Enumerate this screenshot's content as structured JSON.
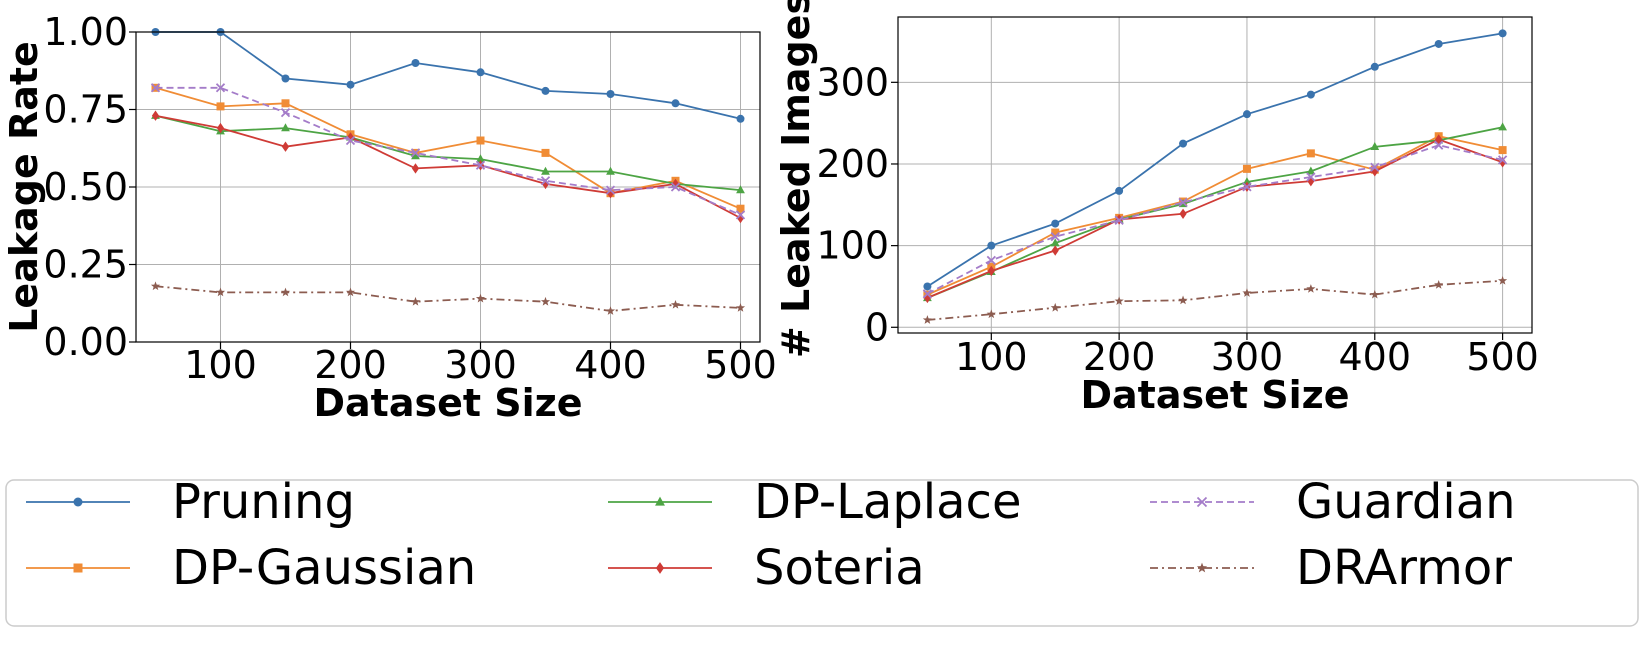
{
  "chart_data": [
    {
      "type": "line",
      "xlabel": "Dataset Size",
      "ylabel": "Leakage Rate",
      "xlim": [
        35,
        515
      ],
      "ylim": [
        0,
        1
      ],
      "xticks": [
        100,
        200,
        300,
        400,
        500
      ],
      "yticks": [
        "0.00",
        "0.25",
        "0.50",
        "0.75",
        "1.00"
      ],
      "grid": true,
      "x": [
        50,
        100,
        150,
        200,
        250,
        300,
        350,
        400,
        450,
        500
      ],
      "series": [
        {
          "name": "Pruning",
          "values": [
            1.0,
            1.0,
            0.85,
            0.83,
            0.9,
            0.87,
            0.81,
            0.8,
            0.77,
            0.72
          ]
        },
        {
          "name": "DP-Gaussian",
          "values": [
            0.82,
            0.76,
            0.77,
            0.67,
            0.61,
            0.65,
            0.61,
            0.48,
            0.52,
            0.43
          ]
        },
        {
          "name": "DP-Laplace",
          "values": [
            0.73,
            0.68,
            0.69,
            0.66,
            0.6,
            0.59,
            0.55,
            0.55,
            0.51,
            0.49
          ]
        },
        {
          "name": "Soteria",
          "values": [
            0.73,
            0.69,
            0.63,
            0.66,
            0.56,
            0.57,
            0.51,
            0.48,
            0.51,
            0.4
          ]
        },
        {
          "name": "Guardian",
          "values": [
            0.82,
            0.82,
            0.74,
            0.65,
            0.61,
            0.57,
            0.52,
            0.49,
            0.5,
            0.41
          ]
        },
        {
          "name": "DRArmor",
          "values": [
            0.18,
            0.16,
            0.16,
            0.16,
            0.13,
            0.14,
            0.13,
            0.1,
            0.12,
            0.11
          ]
        }
      ]
    },
    {
      "type": "line",
      "xlabel": "Dataset Size",
      "ylabel": "# Leaked Images",
      "xlim": [
        27,
        523
      ],
      "ylim": [
        -7,
        380
      ],
      "xticks": [
        100,
        200,
        300,
        400,
        500
      ],
      "yticks": [
        "0",
        "100",
        "200",
        "300"
      ],
      "grid": true,
      "x": [
        50,
        100,
        150,
        200,
        250,
        300,
        350,
        400,
        450,
        500
      ],
      "series": [
        {
          "name": "Pruning",
          "values": [
            50,
            100,
            127,
            167,
            225,
            261,
            285,
            319,
            347,
            360
          ]
        },
        {
          "name": "DP-Gaussian",
          "values": [
            40,
            74,
            116,
            134,
            154,
            194,
            213,
            193,
            234,
            217
          ]
        },
        {
          "name": "DP-Laplace",
          "values": [
            36,
            68,
            103,
            132,
            151,
            178,
            191,
            221,
            229,
            245
          ]
        },
        {
          "name": "Soteria",
          "values": [
            36,
            69,
            94,
            132,
            139,
            172,
            179,
            191,
            230,
            202
          ]
        },
        {
          "name": "Guardian",
          "values": [
            41,
            82,
            111,
            131,
            153,
            172,
            184,
            196,
            223,
            205
          ]
        },
        {
          "name": "DRArmor",
          "values": [
            9,
            16,
            24,
            32,
            33,
            42,
            47,
            40,
            52,
            57
          ]
        }
      ]
    }
  ],
  "legend": {
    "placement": "bottom",
    "entries": [
      {
        "name": "Pruning",
        "color": "#3a73ad",
        "marker": "circle",
        "dash": "solid"
      },
      {
        "name": "DP-Gaussian",
        "color": "#f08c35",
        "marker": "square",
        "dash": "solid"
      },
      {
        "name": "DP-Laplace",
        "color": "#4da444",
        "marker": "triangle",
        "dash": "solid"
      },
      {
        "name": "Soteria",
        "color": "#cf3b36",
        "marker": "diamond",
        "dash": "solid"
      },
      {
        "name": "Guardian",
        "color": "#a47cc9",
        "marker": "x",
        "dash": "dashed"
      },
      {
        "name": "DRArmor",
        "color": "#8c5c50",
        "marker": "star",
        "dash": "dashdot"
      }
    ]
  }
}
